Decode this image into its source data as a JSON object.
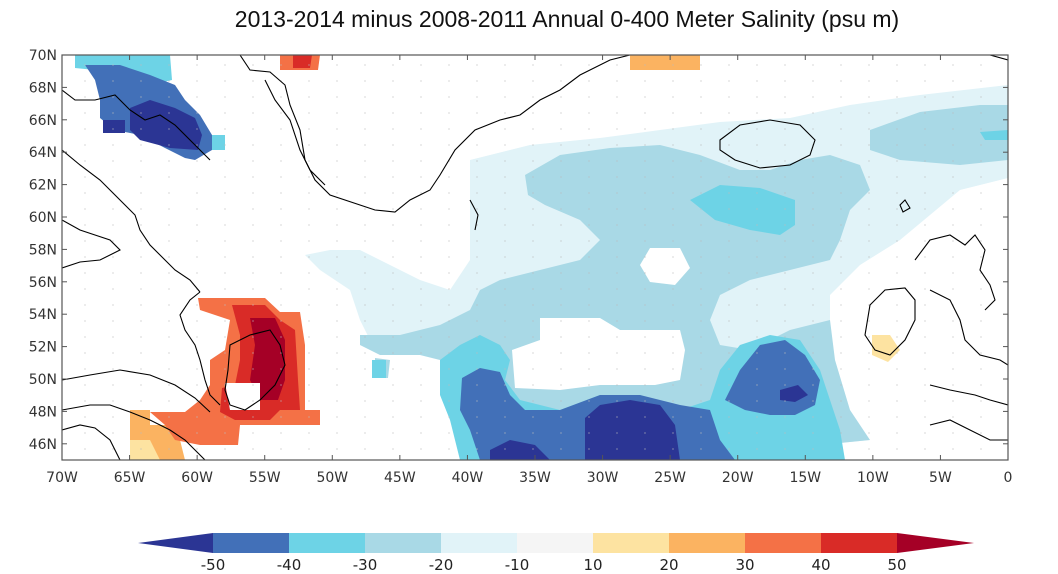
{
  "title": "2013-2014 minus 2008-2011 Annual 0-400 Meter Salinity (psu m)",
  "map": {
    "lon_range": [
      -70,
      0
    ],
    "lat_range": [
      45,
      70
    ],
    "lon_ticks": [
      "70W",
      "65W",
      "60W",
      "55W",
      "50W",
      "45W",
      "40W",
      "35W",
      "30W",
      "25W",
      "20W",
      "15W",
      "10W",
      "5W",
      "0"
    ],
    "lat_ticks": [
      "70N",
      "68N",
      "66N",
      "64N",
      "62N",
      "60N",
      "58N",
      "56N",
      "54N",
      "52N",
      "50N",
      "48N",
      "46N"
    ],
    "lat_tick_values": [
      70,
      68,
      66,
      64,
      62,
      60,
      58,
      56,
      54,
      52,
      50,
      48,
      46
    ]
  },
  "colorbar": {
    "labels": [
      "-50",
      "-40",
      "-30",
      "-20",
      "-10",
      "10",
      "20",
      "30",
      "40",
      "50"
    ],
    "colors": [
      "#2b3594",
      "#4270b8",
      "#6dd3e6",
      "#a9d9e6",
      "#e1f3f8",
      "#f5f5f5",
      "#fde3a1",
      "#fbb361",
      "#f47146",
      "#d92b27",
      "#a50026"
    ]
  }
}
